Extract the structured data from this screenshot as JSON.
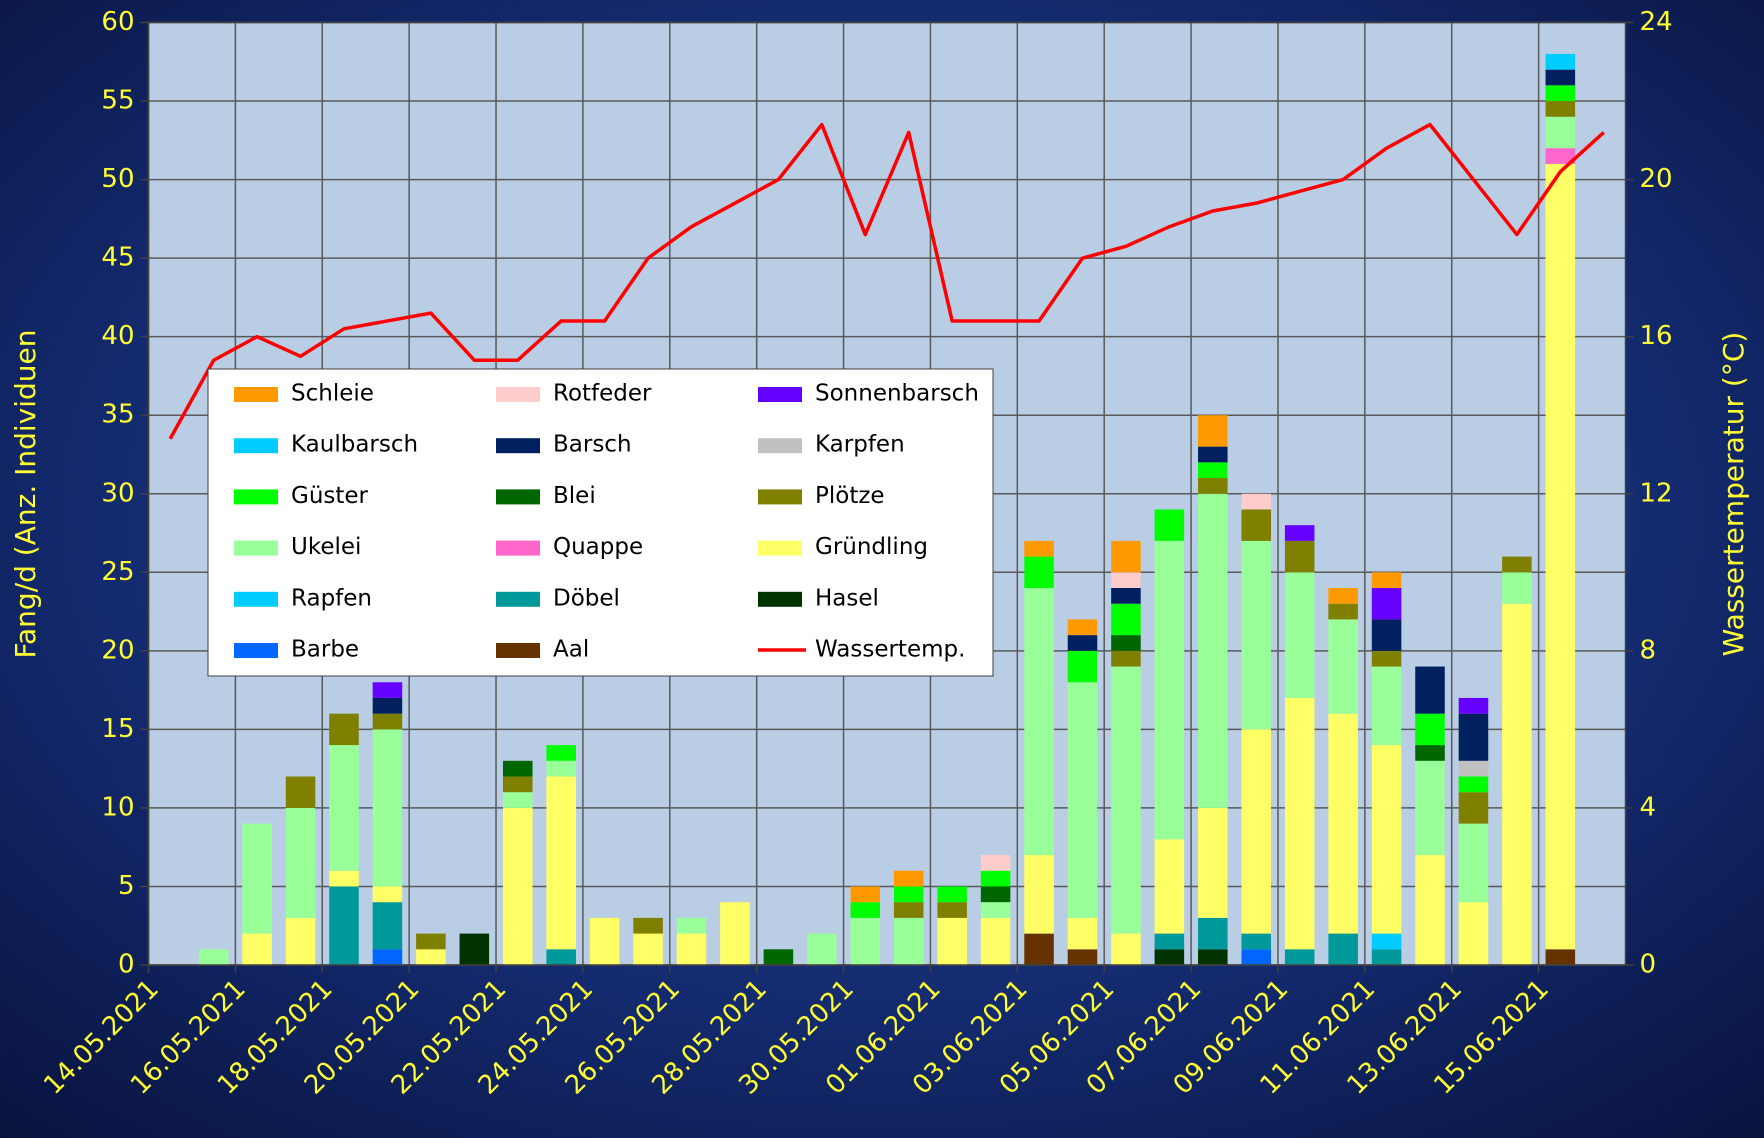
{
  "chart_data": {
    "type": "bar",
    "stacked": true,
    "y_label": "Fang/d (Anz. Individuen",
    "y2_label": "Wassertemperatur (°C)",
    "categories": [
      "14.05.2021",
      null,
      "16.05.2021",
      null,
      "18.05.2021",
      null,
      "20.05.2021",
      null,
      "22.05.2021",
      null,
      "24.05.2021",
      null,
      "26.05.2021",
      null,
      "28.05.2021",
      null,
      "30.05.2021",
      null,
      "01.06.2021",
      null,
      "03.06.2021",
      null,
      "05.06.2021",
      null,
      "07.06.2021",
      null,
      "09.06.2021",
      null,
      "11.06.2021",
      null,
      "13.06.2021",
      null,
      "15.06.2021",
      null
    ],
    "ylim": [
      0,
      60
    ],
    "yticks": [
      0,
      5,
      10,
      15,
      20,
      25,
      30,
      35,
      40,
      45,
      50,
      55,
      60
    ],
    "y2lim": [
      0,
      24
    ],
    "y2ticks": [
      0,
      4,
      8,
      12,
      16,
      20,
      24
    ],
    "grid": true,
    "series": [
      {
        "name": "Aal",
        "color": "#663300",
        "values": [
          0,
          0,
          0,
          0,
          0,
          0,
          0,
          0,
          0,
          0,
          0,
          0,
          0,
          0,
          0,
          0,
          0,
          0,
          0,
          0,
          2,
          1,
          0,
          0,
          0,
          0,
          0,
          0,
          0,
          0,
          0,
          0,
          1,
          0
        ]
      },
      {
        "name": "Barbe",
        "color": "#0066ff",
        "values": [
          0,
          0,
          0,
          0,
          0,
          1,
          0,
          0,
          0,
          0,
          0,
          0,
          0,
          0,
          0,
          0,
          0,
          0,
          0,
          0,
          0,
          0,
          0,
          0,
          0,
          1,
          0,
          0,
          0,
          0,
          0,
          0,
          0,
          0
        ]
      },
      {
        "name": "Hasel",
        "color": "#003300",
        "values": [
          0,
          0,
          0,
          0,
          0,
          0,
          0,
          2,
          0,
          0,
          0,
          0,
          0,
          0,
          0,
          0,
          0,
          0,
          0,
          0,
          0,
          0,
          0,
          1,
          1,
          0,
          0,
          0,
          0,
          0,
          0,
          0,
          0,
          0
        ]
      },
      {
        "name": "Döbel",
        "color": "#009999",
        "values": [
          0,
          0,
          0,
          0,
          5,
          3,
          0,
          0,
          0,
          1,
          0,
          0,
          0,
          0,
          0,
          0,
          0,
          0,
          0,
          0,
          0,
          0,
          0,
          1,
          2,
          1,
          1,
          2,
          1,
          0,
          0,
          0,
          0,
          0
        ]
      },
      {
        "name": "Rapfen",
        "color": "#00ccff",
        "values": [
          0,
          0,
          0,
          0,
          0,
          0,
          0,
          0,
          0,
          0,
          0,
          0,
          0,
          0,
          0,
          0,
          0,
          0,
          0,
          0,
          0,
          0,
          0,
          0,
          0,
          0,
          0,
          0,
          1,
          0,
          0,
          0,
          0,
          0
        ]
      },
      {
        "name": "Gründling",
        "color": "#ffff66",
        "values": [
          0,
          0,
          2,
          3,
          1,
          1,
          1,
          0,
          10,
          11,
          3,
          2,
          2,
          4,
          0,
          0,
          0,
          0,
          3,
          3,
          5,
          2,
          2,
          6,
          7,
          13,
          16,
          14,
          12,
          7,
          4,
          23,
          50,
          0
        ]
      },
      {
        "name": "Quappe",
        "color": "#ff66cc",
        "values": [
          0,
          0,
          0,
          0,
          0,
          0,
          0,
          0,
          0,
          0,
          0,
          0,
          0,
          0,
          0,
          0,
          0,
          0,
          0,
          0,
          0,
          0,
          0,
          0,
          0,
          0,
          0,
          0,
          0,
          0,
          0,
          0,
          1,
          0
        ]
      },
      {
        "name": "Ukelei",
        "color": "#99ff99",
        "values": [
          0,
          1,
          7,
          7,
          8,
          10,
          0,
          0,
          1,
          1,
          0,
          0,
          1,
          0,
          0,
          2,
          3,
          3,
          0,
          1,
          17,
          15,
          17,
          19,
          20,
          12,
          8,
          6,
          5,
          6,
          5,
          2,
          2,
          0
        ]
      },
      {
        "name": "Plötze",
        "color": "#808000",
        "values": [
          0,
          0,
          0,
          2,
          2,
          1,
          1,
          0,
          1,
          0,
          0,
          1,
          0,
          0,
          0,
          0,
          0,
          1,
          1,
          0,
          0,
          0,
          1,
          0,
          1,
          2,
          2,
          1,
          1,
          0,
          2,
          1,
          1,
          0
        ]
      },
      {
        "name": "Blei",
        "color": "#006600",
        "values": [
          0,
          0,
          0,
          0,
          0,
          0,
          0,
          0,
          1,
          0,
          0,
          0,
          0,
          0,
          1,
          0,
          0,
          0,
          0,
          1,
          0,
          0,
          1,
          0,
          0,
          0,
          0,
          0,
          0,
          1,
          0,
          0,
          0,
          0
        ]
      },
      {
        "name": "Güster",
        "color": "#00ff00",
        "values": [
          0,
          0,
          0,
          0,
          0,
          0,
          0,
          0,
          0,
          1,
          0,
          0,
          0,
          0,
          0,
          0,
          1,
          1,
          1,
          1,
          2,
          2,
          2,
          2,
          1,
          0,
          0,
          0,
          0,
          2,
          1,
          0,
          1,
          0
        ]
      },
      {
        "name": "Karpfen",
        "color": "#c0c0c0",
        "values": [
          0,
          0,
          0,
          0,
          0,
          0,
          0,
          0,
          0,
          0,
          0,
          0,
          0,
          0,
          0,
          0,
          0,
          0,
          0,
          0,
          0,
          0,
          0,
          0,
          0,
          0,
          0,
          0,
          0,
          0,
          1,
          0,
          0,
          0
        ]
      },
      {
        "name": "Barsch",
        "color": "#002060",
        "values": [
          0,
          0,
          0,
          0,
          0,
          1,
          0,
          0,
          0,
          0,
          0,
          0,
          0,
          0,
          0,
          0,
          0,
          0,
          0,
          0,
          0,
          1,
          1,
          0,
          1,
          0,
          0,
          0,
          2,
          3,
          3,
          0,
          1,
          0
        ]
      },
      {
        "name": "Kaulbarsch",
        "color": "#00ccff",
        "values": [
          0,
          0,
          0,
          0,
          0,
          0,
          0,
          0,
          0,
          0,
          0,
          0,
          0,
          0,
          0,
          0,
          0,
          0,
          0,
          0,
          0,
          0,
          0,
          0,
          0,
          0,
          0,
          0,
          0,
          0,
          0,
          0,
          1,
          0
        ]
      },
      {
        "name": "Sonnenbarsch",
        "color": "#6600ff",
        "values": [
          0,
          0,
          0,
          0,
          0,
          1,
          0,
          0,
          0,
          0,
          0,
          0,
          0,
          0,
          0,
          0,
          0,
          0,
          0,
          0,
          0,
          0,
          0,
          0,
          0,
          0,
          1,
          0,
          2,
          0,
          1,
          0,
          0,
          0
        ]
      },
      {
        "name": "Rotfeder",
        "color": "#ffcccc",
        "values": [
          0,
          0,
          0,
          0,
          0,
          0,
          0,
          0,
          0,
          0,
          0,
          0,
          0,
          0,
          0,
          0,
          0,
          0,
          0,
          1,
          0,
          0,
          1,
          0,
          0,
          1,
          0,
          0,
          0,
          0,
          0,
          0,
          0,
          0
        ]
      },
      {
        "name": "Schleie",
        "color": "#ff9900",
        "values": [
          0,
          0,
          0,
          0,
          0,
          0,
          0,
          0,
          0,
          0,
          0,
          0,
          0,
          0,
          0,
          0,
          1,
          1,
          0,
          0,
          1,
          1,
          2,
          0,
          2,
          0,
          0,
          1,
          1,
          0,
          0,
          0,
          0,
          0
        ]
      },
      {
        "name": "Wassertemp.",
        "color": "#ff0000",
        "type": "line",
        "axis": "y2",
        "values": [
          13.4,
          15.4,
          16.0,
          15.5,
          16.2,
          16.4,
          16.6,
          15.4,
          15.4,
          16.4,
          16.4,
          18.0,
          18.8,
          19.4,
          20.0,
          21.4,
          18.6,
          21.2,
          16.4,
          16.4,
          16.4,
          18.0,
          18.3,
          18.8,
          19.2,
          19.4,
          19.7,
          20.0,
          20.8,
          21.4,
          20.0,
          18.6,
          20.2,
          21.2
        ]
      }
    ]
  }
}
